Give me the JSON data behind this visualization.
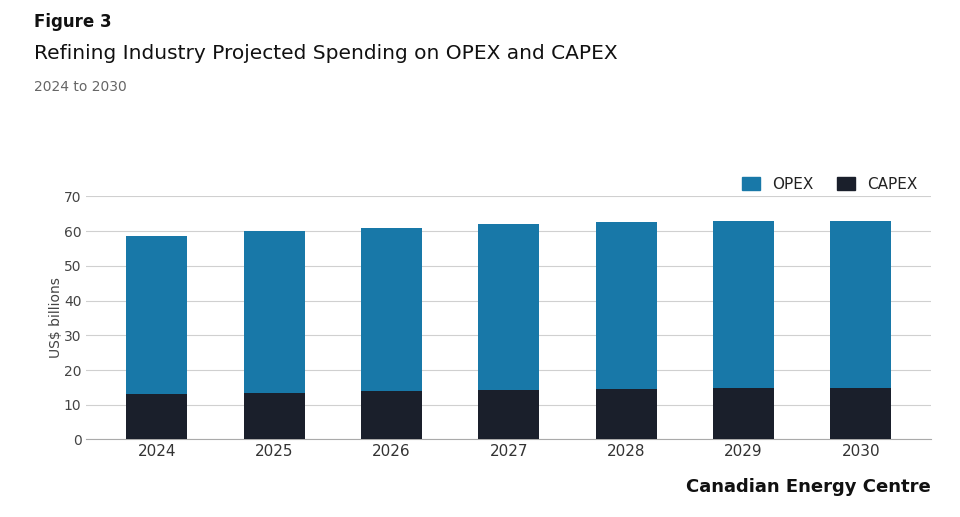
{
  "figure_label": "Figure 3",
  "title": "Refining Industry Projected Spending on OPEX and CAPEX",
  "subtitle": "2024 to 2030",
  "years": [
    2024,
    2025,
    2026,
    2027,
    2028,
    2029,
    2030
  ],
  "capex": [
    13.0,
    13.5,
    14.0,
    14.2,
    14.5,
    14.8,
    14.8
  ],
  "opex": [
    45.5,
    46.5,
    47.0,
    48.0,
    48.0,
    48.2,
    48.2
  ],
  "opex_color": "#1878a8",
  "capex_color": "#1a1f2b",
  "ylim": [
    0,
    70
  ],
  "yticks": [
    0,
    10,
    20,
    30,
    40,
    50,
    60,
    70
  ],
  "ylabel": "US$ billions",
  "background_color": "#ffffff",
  "grid_color": "#d0d0d0",
  "legend_labels": [
    "OPEX",
    "CAPEX"
  ],
  "watermark": "Canadian Energy Centre",
  "bar_width": 0.52
}
